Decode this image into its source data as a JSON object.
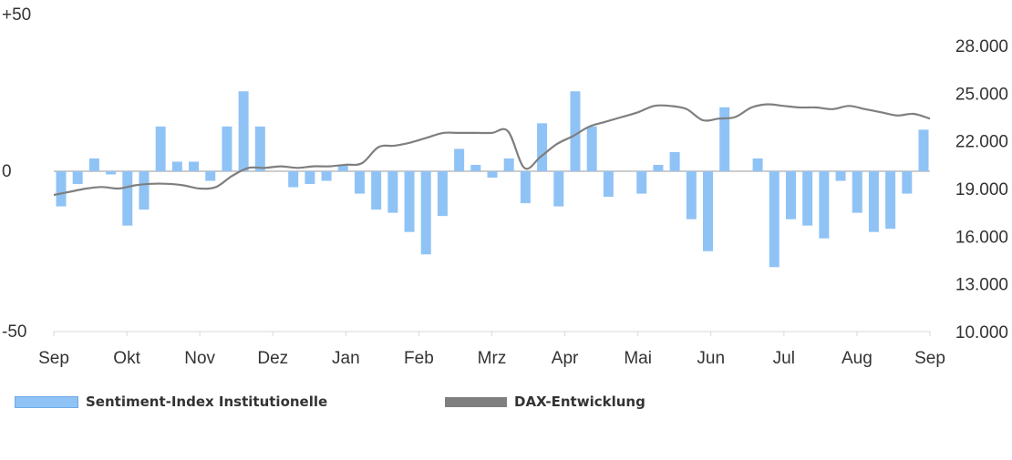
{
  "chart_data": {
    "type": "bar+line",
    "colors": {
      "bars": "#90C3F5",
      "bars_edge": "#6FA9E6",
      "line": "#7F7F7F"
    },
    "x_tick_labels": [
      "Sep",
      "Okt",
      "Nov",
      "Dez",
      "Jan",
      "Feb",
      "Mrz",
      "Apr",
      "Mai",
      "Jun",
      "Jul",
      "Aug",
      "Sep"
    ],
    "y_left": {
      "ticks": [
        "+50",
        "0",
        "-50"
      ],
      "range": [
        -50,
        50
      ]
    },
    "y_right": {
      "ticks": [
        "28.000",
        "25.000",
        "22.000",
        "19.000",
        "16.000",
        "13.000",
        "10.000"
      ],
      "range": [
        10000,
        28000
      ]
    },
    "bar_series": {
      "name": "Sentiment-Index Institutionelle",
      "values": [
        -11,
        -4,
        4,
        -1,
        -17,
        -12,
        14,
        3,
        3,
        -3,
        14,
        25,
        14,
        0,
        -5,
        -4,
        -3,
        2,
        -7,
        -12,
        -13,
        -19,
        -26,
        -14,
        7,
        2,
        -2,
        4,
        -10,
        15,
        -11,
        25,
        14,
        -8,
        0,
        -7,
        2,
        6,
        -15,
        -25,
        20,
        0,
        4,
        -30,
        -15,
        -17,
        -21,
        -3,
        -13,
        -19,
        -18,
        -7,
        13
      ]
    },
    "line_series": {
      "name": "DAX-Entwicklung",
      "values": [
        18600,
        18800,
        19000,
        19100,
        19000,
        19200,
        19300,
        19300,
        19200,
        19000,
        19100,
        19800,
        20300,
        20300,
        20400,
        20300,
        20400,
        20400,
        20500,
        20600,
        21600,
        21700,
        21900,
        22200,
        22500,
        22500,
        22500,
        22500,
        22600,
        20300,
        21000,
        21800,
        22300,
        22900,
        23200,
        23500,
        23800,
        24200,
        24200,
        24000,
        23300,
        23400,
        23500,
        24100,
        24300,
        24200,
        24100,
        24100,
        24000,
        24200,
        24000,
        23800,
        23600,
        23700,
        23400
      ]
    },
    "legend": {
      "placement": "bottom-left"
    }
  }
}
